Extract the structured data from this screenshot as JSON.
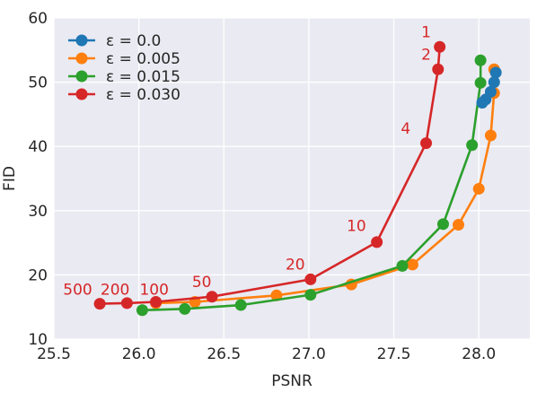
{
  "chart_data": {
    "type": "line",
    "title": "",
    "xlabel": "PSNR",
    "ylabel": "FID",
    "xlim": [
      25.5,
      28.3
    ],
    "ylim": [
      10,
      60
    ],
    "xticks": [
      "25.5",
      "26.0",
      "26.5",
      "27.0",
      "27.5",
      "28.0"
    ],
    "yticks": [
      "10",
      "20",
      "30",
      "40",
      "50",
      "60"
    ],
    "xtick_values": [
      25.5,
      26.0,
      26.5,
      27.0,
      27.5,
      28.0
    ],
    "ytick_values": [
      10,
      20,
      30,
      40,
      50,
      60
    ],
    "grid": true,
    "legend_position": "top-left",
    "series": [
      {
        "name": "ε = 0.0",
        "color": "#1f77b4",
        "x": [
          28.1,
          28.09,
          28.07,
          28.04,
          28.02
        ],
        "y": [
          51.5,
          50.0,
          48.5,
          47.3,
          46.8
        ]
      },
      {
        "name": "ε = 0.005",
        "color": "#ff7f0e",
        "x": [
          28.09,
          28.09,
          28.07,
          28.0,
          27.88,
          27.61,
          27.25,
          26.81,
          26.33,
          26.1
        ],
        "y": [
          52.0,
          48.3,
          41.7,
          33.4,
          27.8,
          21.6,
          18.5,
          16.8,
          15.8,
          15.6
        ]
      },
      {
        "name": "ε = 0.015",
        "color": "#2ca02c",
        "x": [
          28.01,
          28.01,
          27.96,
          27.79,
          27.55,
          27.01,
          26.6,
          26.27,
          26.02
        ],
        "y": [
          53.4,
          49.9,
          40.2,
          27.9,
          21.4,
          16.9,
          15.3,
          14.7,
          14.5
        ]
      },
      {
        "name": "ε = 0.030",
        "color": "#d62728",
        "x": [
          27.77,
          27.76,
          27.69,
          27.4,
          27.01,
          26.43,
          26.1,
          25.93,
          25.77
        ],
        "y": [
          55.5,
          52.0,
          40.5,
          25.1,
          19.3,
          16.6,
          15.8,
          15.6,
          15.5
        ]
      }
    ],
    "annotations": [
      {
        "text": "1",
        "x": 27.69,
        "y": 57.0,
        "color": "#d62728"
      },
      {
        "text": "2",
        "x": 27.69,
        "y": 53.5,
        "color": "#d62728"
      },
      {
        "text": "4",
        "x": 27.57,
        "y": 42.0,
        "color": "#d62728"
      },
      {
        "text": "10",
        "x": 27.28,
        "y": 26.8,
        "color": "#d62728"
      },
      {
        "text": "20",
        "x": 26.92,
        "y": 20.8,
        "color": "#d62728"
      },
      {
        "text": "50",
        "x": 26.37,
        "y": 18.1,
        "color": "#d62728"
      },
      {
        "text": "500",
        "x": 25.64,
        "y": 16.9,
        "color": "#d62728"
      },
      {
        "text": "200",
        "x": 25.86,
        "y": 16.9,
        "color": "#d62728"
      },
      {
        "text": "100",
        "x": 26.09,
        "y": 16.9,
        "color": "#d62728"
      }
    ]
  },
  "style": {
    "plot_bg": "#eaeaf2",
    "grid_color": "#ffffff",
    "text_color": "#262626"
  }
}
